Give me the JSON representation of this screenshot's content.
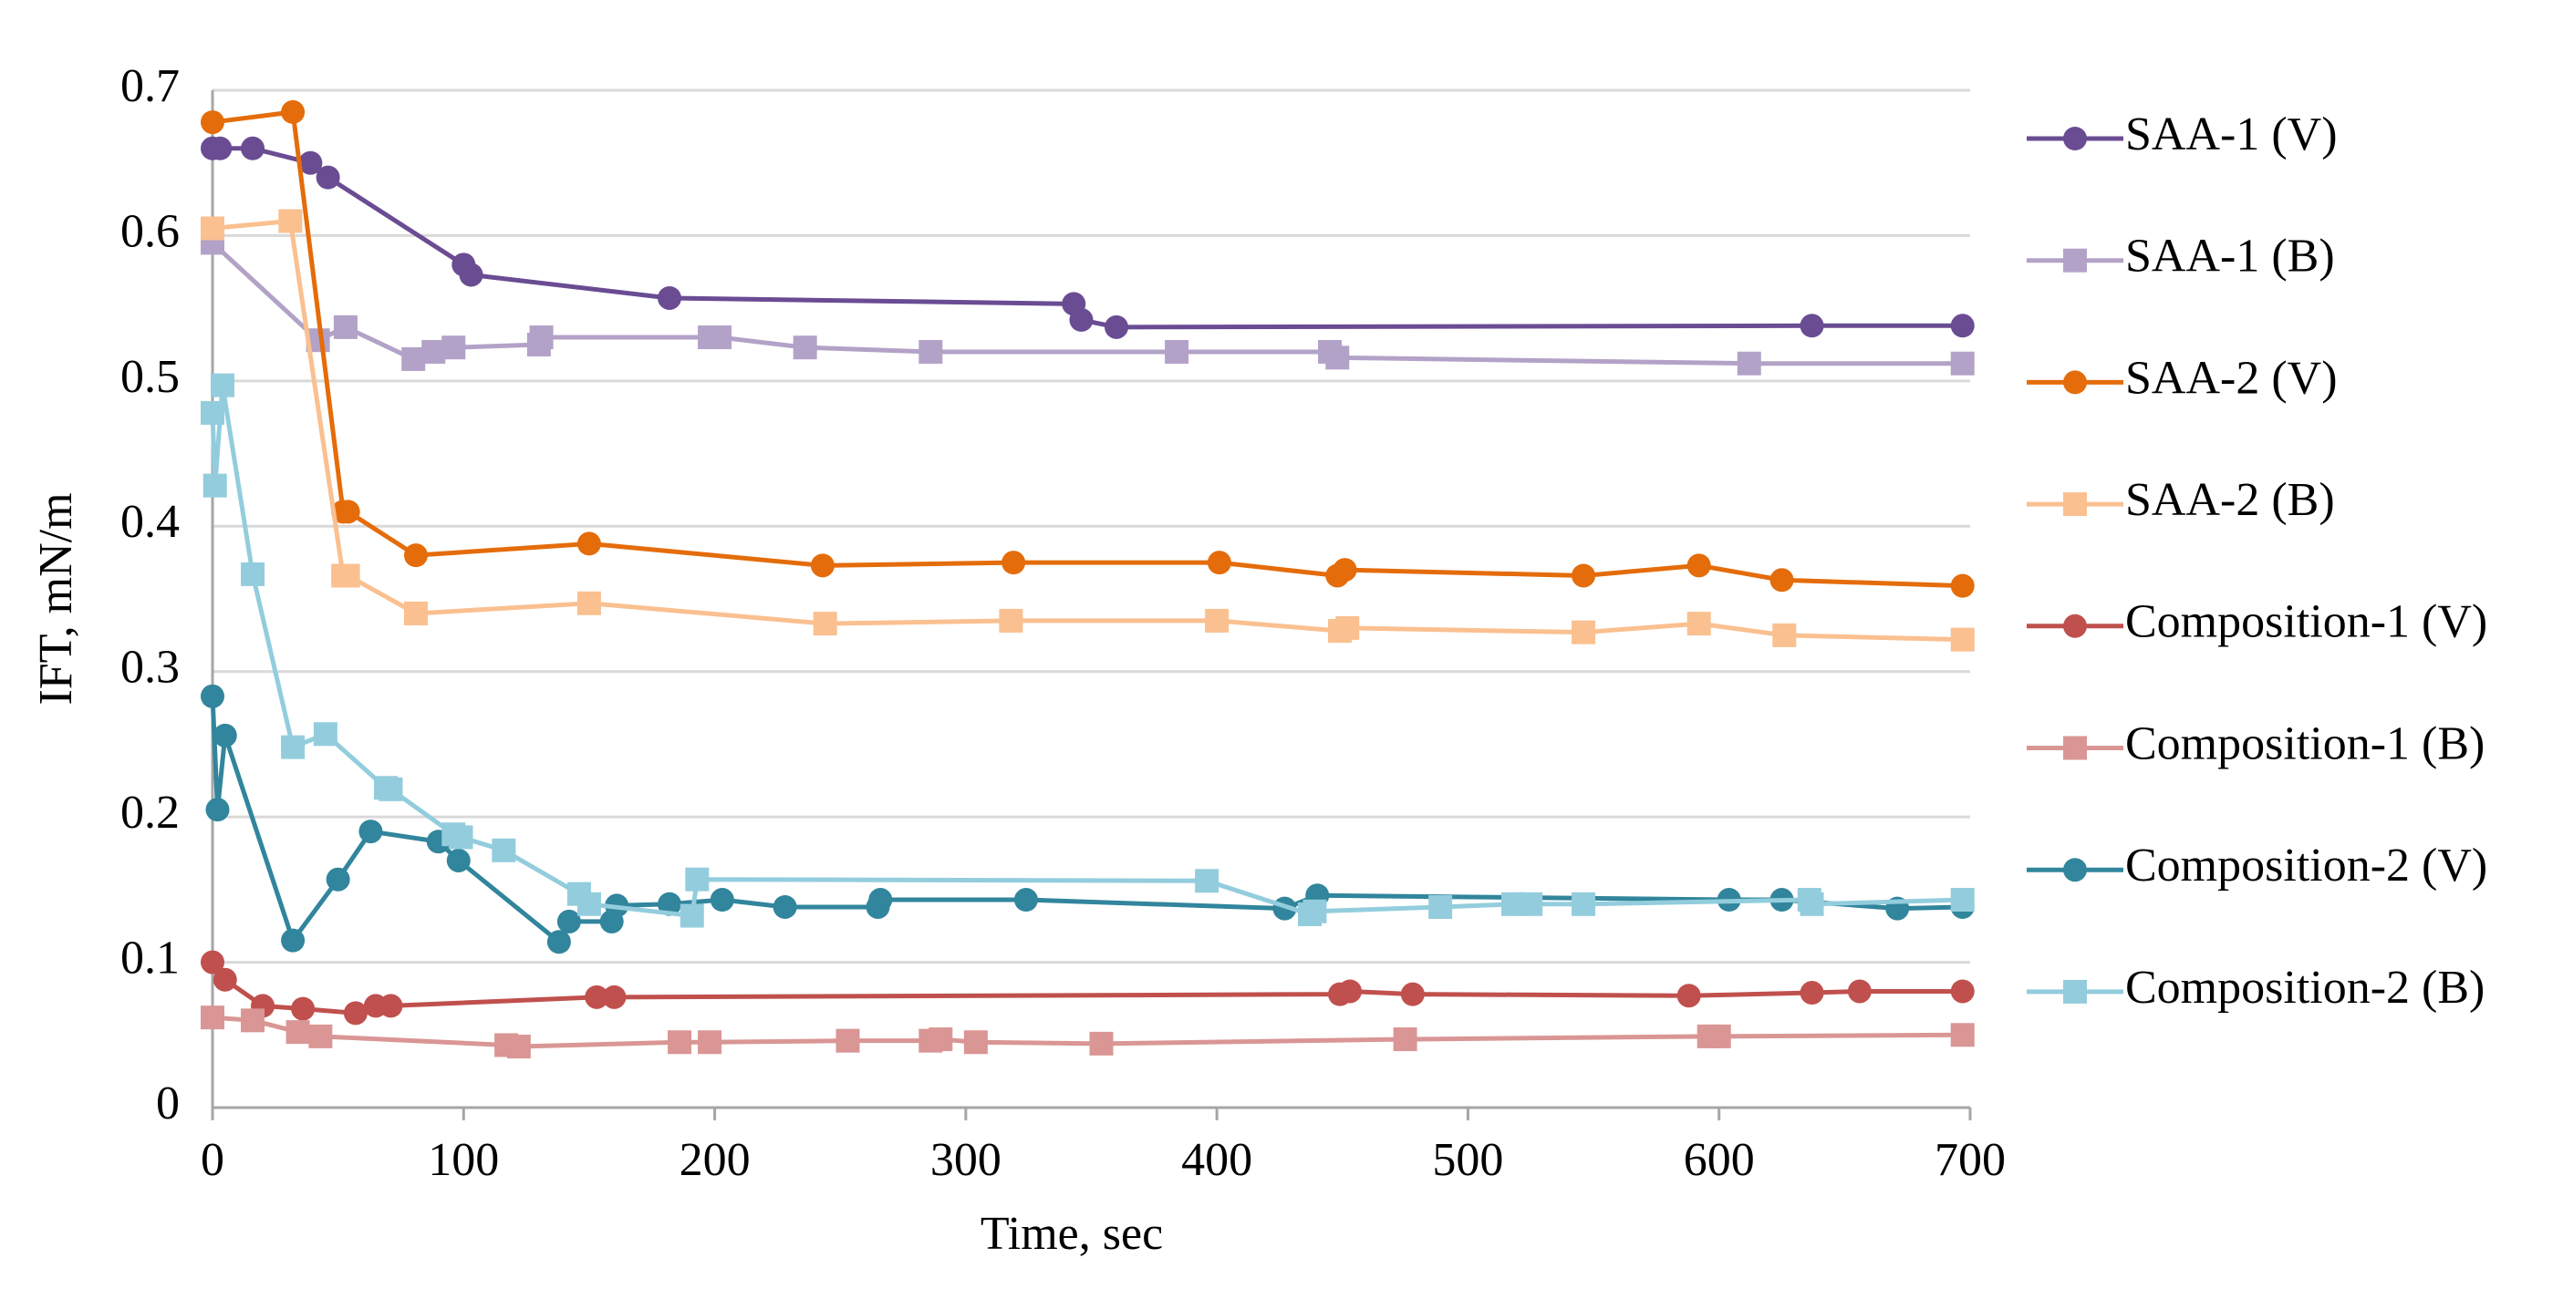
{
  "chart_data": {
    "type": "line",
    "x_label": "Time, sec",
    "y_label": "IFT, mN/m",
    "xlim": [
      0,
      700
    ],
    "xticks": [
      0,
      100,
      200,
      300,
      400,
      500,
      600,
      700
    ],
    "ylim": [
      0,
      0.7
    ],
    "yticks": [
      0,
      0.1,
      0.2,
      0.3,
      0.4,
      0.5,
      0.6,
      0.7
    ],
    "grid": true,
    "legend": "right",
    "series": [
      {
        "name": "SAA-1 (V)",
        "color": "#6a4c93",
        "marker": "circle",
        "x": [
          0,
          3,
          16,
          39,
          46,
          100,
          103,
          182,
          343,
          346,
          360,
          637,
          697
        ],
        "values": [
          0.66,
          0.66,
          0.66,
          0.65,
          0.64,
          0.58,
          0.573,
          0.557,
          0.553,
          0.542,
          0.537,
          0.538,
          0.538
        ]
      },
      {
        "name": "SAA-1 (B)",
        "color": "#b3a2c7",
        "marker": "square",
        "x": [
          0,
          42,
          53,
          80,
          88,
          96,
          130,
          131,
          198,
          202,
          236,
          286,
          384,
          445,
          448,
          612,
          697
        ],
        "values": [
          0.595,
          0.528,
          0.537,
          0.515,
          0.52,
          0.523,
          0.525,
          0.53,
          0.53,
          0.53,
          0.523,
          0.52,
          0.52,
          0.52,
          0.516,
          0.512,
          0.512
        ]
      },
      {
        "name": "SAA-2 (V)",
        "color": "#e46c0a",
        "marker": "circle",
        "x": [
          0,
          32,
          52,
          54,
          81,
          150,
          243,
          319,
          401,
          448,
          451,
          546,
          592,
          625,
          697
        ],
        "values": [
          0.678,
          0.685,
          0.41,
          0.41,
          0.38,
          0.388,
          0.373,
          0.375,
          0.375,
          0.366,
          0.37,
          0.366,
          0.373,
          0.363,
          0.359
        ]
      },
      {
        "name": "SAA-2 (B)",
        "color": "#fac090",
        "marker": "square",
        "x": [
          0,
          31,
          52,
          54,
          81,
          150,
          244,
          318,
          400,
          449,
          452,
          546,
          592,
          626,
          697
        ],
        "values": [
          0.605,
          0.61,
          0.366,
          0.366,
          0.34,
          0.347,
          0.333,
          0.335,
          0.335,
          0.328,
          0.33,
          0.327,
          0.333,
          0.325,
          0.322
        ]
      },
      {
        "name": "Composition-1 (V)",
        "color": "#c0504d",
        "marker": "circle",
        "x": [
          0,
          5,
          20,
          36,
          57,
          65,
          71,
          153,
          160,
          449,
          453,
          478,
          588,
          637,
          656,
          697
        ],
        "values": [
          0.1,
          0.088,
          0.07,
          0.068,
          0.065,
          0.07,
          0.07,
          0.076,
          0.076,
          0.078,
          0.08,
          0.078,
          0.077,
          0.079,
          0.08,
          0.08
        ]
      },
      {
        "name": "Composition-1 (B)",
        "color": "#d99694",
        "marker": "square",
        "x": [
          0,
          16,
          34,
          43,
          117,
          122,
          186,
          198,
          253,
          286,
          290,
          304,
          354,
          475,
          596,
          600,
          697
        ],
        "values": [
          0.062,
          0.06,
          0.052,
          0.049,
          0.043,
          0.042,
          0.045,
          0.045,
          0.046,
          0.046,
          0.047,
          0.045,
          0.044,
          0.047,
          0.049,
          0.049,
          0.05
        ]
      },
      {
        "name": "Composition-2 (V)",
        "color": "#31859c",
        "marker": "circle",
        "x": [
          0,
          2,
          5,
          32,
          50,
          63,
          90,
          98,
          138,
          142,
          159,
          161,
          182,
          203,
          228,
          265,
          266,
          324,
          427,
          440,
          604,
          625,
          671,
          697
        ],
        "values": [
          0.283,
          0.205,
          0.256,
          0.115,
          0.157,
          0.19,
          0.183,
          0.17,
          0.114,
          0.128,
          0.128,
          0.139,
          0.14,
          0.143,
          0.138,
          0.138,
          0.143,
          0.143,
          0.137,
          0.146,
          0.143,
          0.143,
          0.137,
          0.138
        ]
      },
      {
        "name": "Composition-2 (B)",
        "color": "#93cddd",
        "marker": "square",
        "x": [
          0,
          1,
          4,
          16,
          32,
          45,
          69,
          71,
          96,
          99,
          116,
          146,
          150,
          191,
          193,
          396,
          437,
          439,
          489,
          518,
          525,
          546,
          636,
          637,
          697
        ],
        "values": [
          0.478,
          0.428,
          0.497,
          0.367,
          0.248,
          0.257,
          0.22,
          0.219,
          0.188,
          0.186,
          0.177,
          0.147,
          0.14,
          0.132,
          0.157,
          0.156,
          0.133,
          0.135,
          0.138,
          0.14,
          0.14,
          0.14,
          0.143,
          0.14,
          0.143
        ]
      }
    ]
  }
}
